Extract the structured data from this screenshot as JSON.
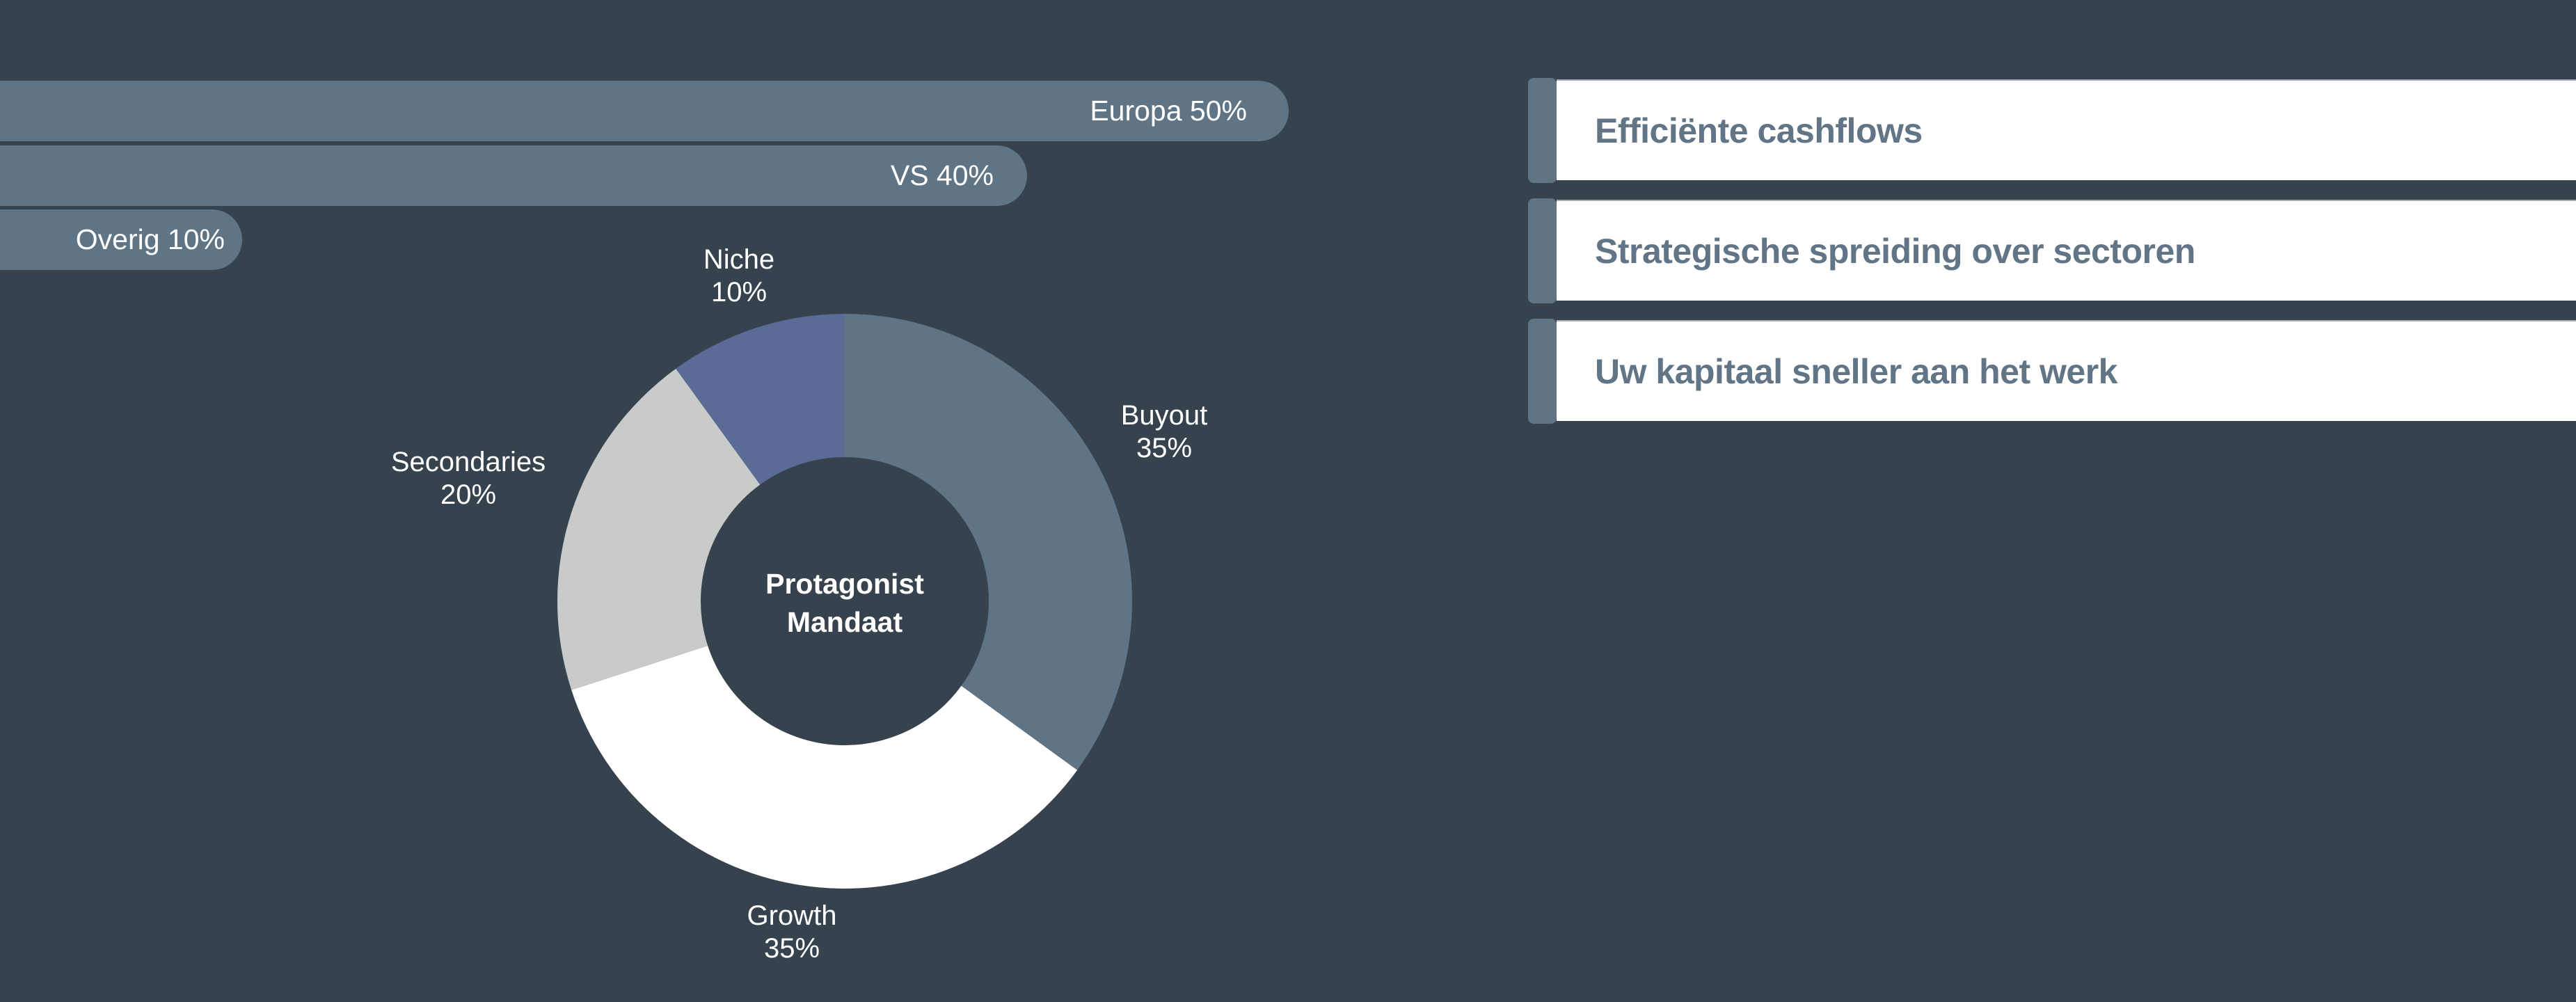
{
  "colors": {
    "background": "#36424d",
    "bar": "#5f7586",
    "card_bg": "#ffffff",
    "card_accent": "#5f7586",
    "card_text": "#617586",
    "label_text": "#ffffff"
  },
  "regions": {
    "bars": [
      {
        "label": "Europa 50%",
        "region": "Europa",
        "percent": 50
      },
      {
        "label": "VS 40%",
        "region": "VS",
        "percent": 40
      },
      {
        "label": "Overig 10%",
        "region": "Overig",
        "percent": 10
      }
    ]
  },
  "donut": {
    "center_title_line1": "Protagonist",
    "center_title_line2": "Mandaat",
    "segments": [
      {
        "name": "Buyout",
        "value_label": "35%",
        "value": 35,
        "color": "#5f7586"
      },
      {
        "name": "Growth",
        "value_label": "35%",
        "value": 35,
        "color": "#ffffff"
      },
      {
        "name": "Secondaries",
        "value_label": "20%",
        "value": 20,
        "color": "#c9cbca"
      },
      {
        "name": "Niche",
        "value_label": "10%",
        "value": 10,
        "color": "#5a6b96"
      }
    ]
  },
  "cards": [
    {
      "title": "Efficiënte cashflows"
    },
    {
      "title": "Strategische spreiding over sectoren"
    },
    {
      "title": "Uw kapitaal sneller aan het werk"
    }
  ],
  "chart_data": [
    {
      "type": "bar",
      "orientation": "horizontal",
      "title": "",
      "categories": [
        "Europa",
        "VS",
        "Overig"
      ],
      "values": [
        50,
        40,
        10
      ],
      "value_labels": [
        "Europa 50%",
        "VS 40%",
        "Overig 10%"
      ],
      "xlabel": "",
      "ylabel": "",
      "unit": "%",
      "grid": false,
      "legend": false
    },
    {
      "type": "pie",
      "variant": "donut",
      "title": "Protagonist Mandaat",
      "categories": [
        "Buyout",
        "Growth",
        "Secondaries",
        "Niche"
      ],
      "values": [
        35,
        35,
        20,
        10
      ],
      "unit": "%",
      "colors": [
        "#5f7586",
        "#ffffff",
        "#c9cbca",
        "#5a6b96"
      ],
      "start_angle": "top",
      "direction": "clockwise",
      "legend": false
    }
  ]
}
